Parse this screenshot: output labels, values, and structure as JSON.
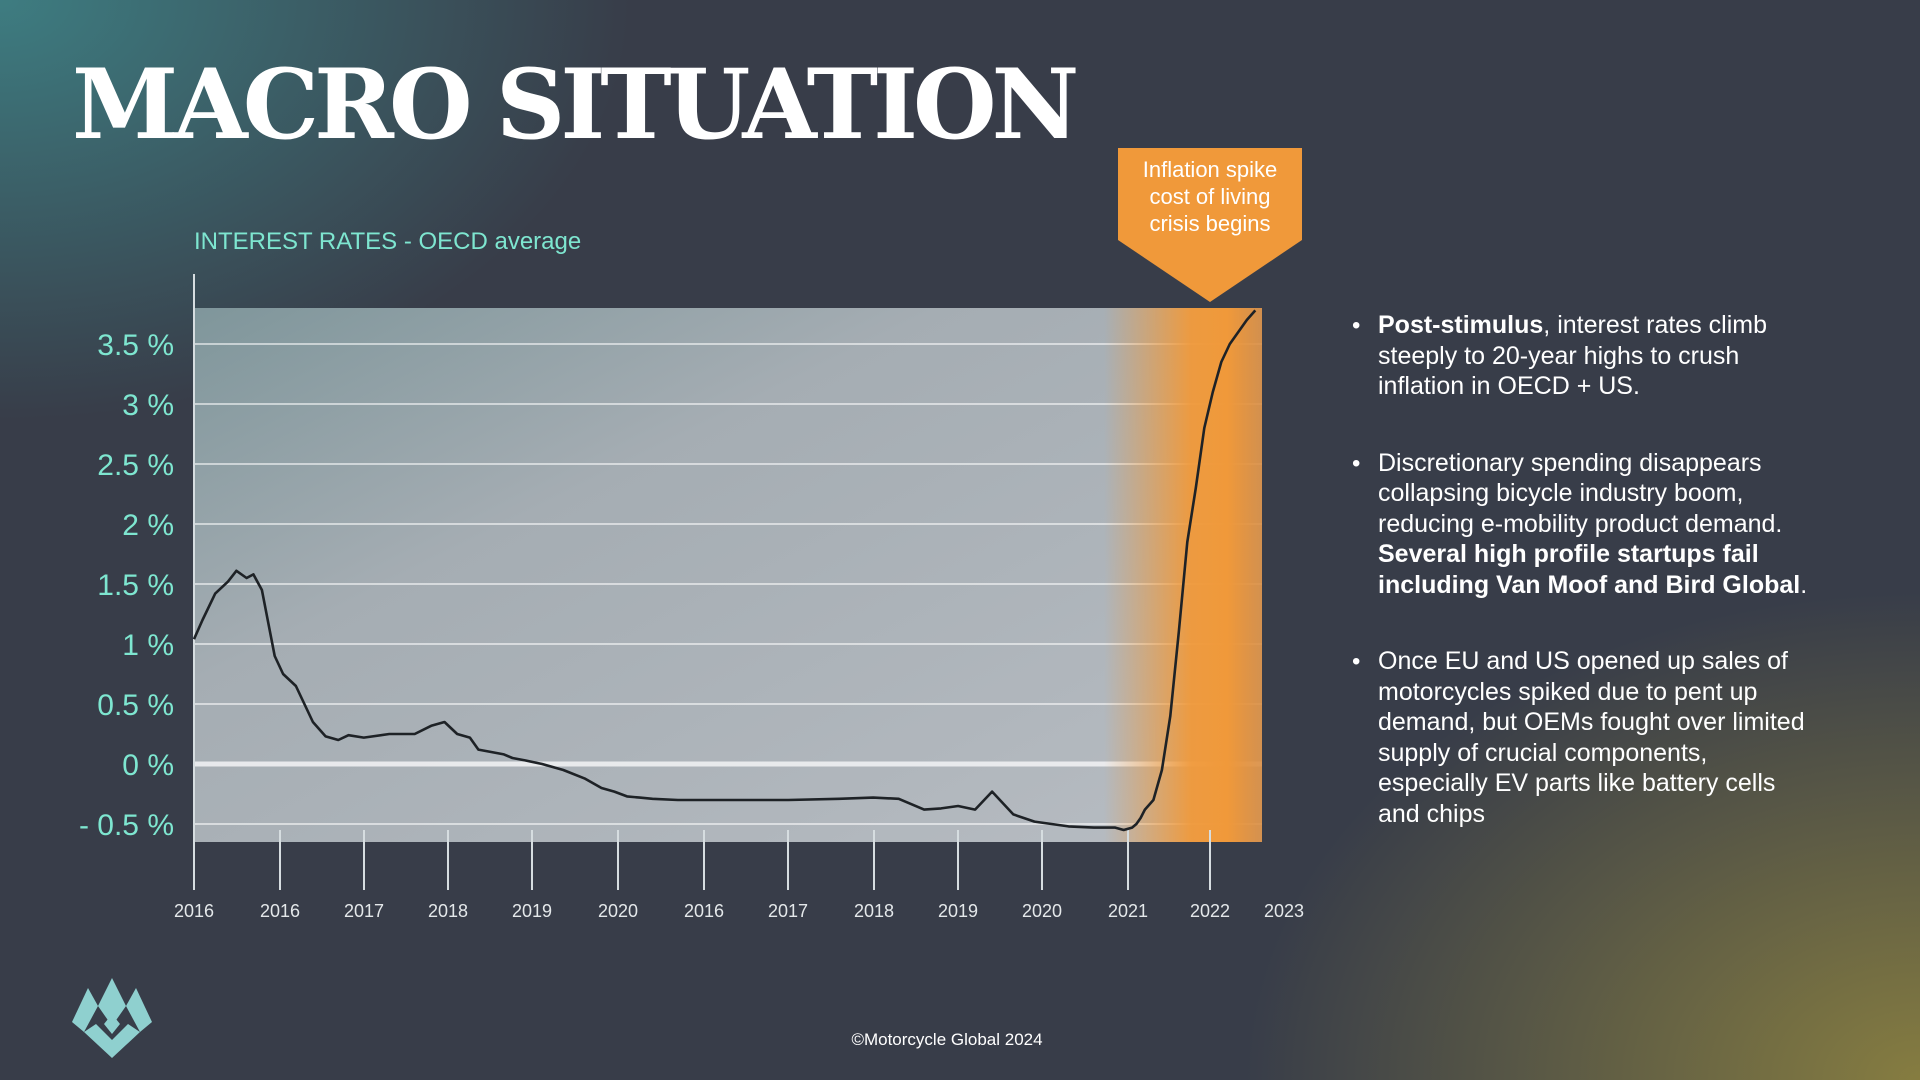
{
  "slide": {
    "title": "MACRO SITUATION",
    "footer": "©Motorcycle Global 2024",
    "logo_icon": "motorcycle-global-logo-icon"
  },
  "callout": {
    "lines": [
      "Inflation spike",
      "cost of living",
      "crisis begins"
    ],
    "color": "#f0993a"
  },
  "bullets": [
    {
      "parts": [
        {
          "text": "Post-stimulus",
          "bold": true
        },
        {
          "text": ", interest rates climb steeply to 20-year highs to crush inflation in OECD + US.",
          "bold": false
        }
      ]
    },
    {
      "parts": [
        {
          "text": "Discretionary spending disappears collapsing bicycle industry boom, reducing e-mobility product demand.  ",
          "bold": false
        },
        {
          "text": "Several high profile startups fail including Van Moof and Bird Global",
          "bold": true
        },
        {
          "text": ".",
          "bold": false
        }
      ]
    },
    {
      "parts": [
        {
          "text": "Once EU and US opened up sales of motorcycles spiked due to pent up demand, but OEMs fought over limited supply of crucial components, especially EV parts like battery cells and chips",
          "bold": false
        }
      ]
    }
  ],
  "chart_data": {
    "type": "line",
    "title": "INTEREST RATES  -  OECD average",
    "xlabel": "",
    "ylabel": "",
    "ylim": [
      -0.65,
      3.8
    ],
    "y_ticks": [
      3.5,
      3,
      2.5,
      2,
      1.5,
      1,
      0.5,
      0,
      -0.5
    ],
    "y_tick_labels": [
      "3.5 %",
      "3 %",
      "2.5 %",
      "2 %",
      "1.5 %",
      "1 %",
      "0.5 %",
      "0 %",
      "- 0.5 %"
    ],
    "x_tick_labels": [
      "2016",
      "2016",
      "2017",
      "2018",
      "2019",
      "2020",
      "2016",
      "2017",
      "2018",
      "2019",
      "2020",
      "2021",
      "2022",
      "2023"
    ],
    "grid": true,
    "highlight": {
      "label": "Inflation spike cost of living crisis begins",
      "color": "#f0993a",
      "at_tick_index": 12
    },
    "series": [
      {
        "x": [
          0.0,
          0.1,
          0.25,
          0.4,
          0.5,
          0.62,
          0.7,
          0.8,
          0.95,
          1.05,
          1.2,
          1.4,
          1.55,
          1.7,
          1.82,
          2.0,
          2.3,
          2.6,
          2.8,
          2.95,
          3.1,
          3.25,
          3.35,
          3.5,
          3.65,
          3.75,
          3.9,
          4.1,
          4.35,
          4.6,
          4.8,
          4.95,
          5.1,
          5.25,
          5.4,
          5.7,
          6.0,
          6.4,
          7.0,
          7.6,
          8.0,
          8.3,
          8.6,
          8.8,
          9.0,
          9.2,
          9.4,
          9.65,
          9.9,
          10.3,
          10.6,
          10.85,
          10.95,
          11.05,
          11.1,
          11.15,
          11.2,
          11.3,
          11.4,
          11.5,
          11.6,
          11.7,
          11.8,
          11.9,
          12.0,
          12.1,
          12.2,
          12.3,
          12.4,
          12.5
        ],
        "y": [
          1.04,
          1.2,
          1.42,
          1.52,
          1.61,
          1.55,
          1.58,
          1.45,
          0.9,
          0.75,
          0.65,
          0.35,
          0.23,
          0.2,
          0.24,
          0.22,
          0.25,
          0.25,
          0.32,
          0.35,
          0.25,
          0.22,
          0.12,
          0.1,
          0.08,
          0.05,
          0.03,
          0.0,
          -0.05,
          -0.12,
          -0.2,
          -0.23,
          -0.27,
          -0.28,
          -0.29,
          -0.3,
          -0.3,
          -0.3,
          -0.3,
          -0.29,
          -0.28,
          -0.29,
          -0.38,
          -0.37,
          -0.35,
          -0.38,
          -0.23,
          -0.42,
          -0.48,
          -0.52,
          -0.53,
          -0.53,
          -0.55,
          -0.53,
          -0.5,
          -0.45,
          -0.38,
          -0.3,
          -0.05,
          0.4,
          1.1,
          1.85,
          2.3,
          2.8,
          3.1,
          3.35,
          3.5,
          3.6,
          3.7,
          3.78
        ]
      }
    ]
  }
}
